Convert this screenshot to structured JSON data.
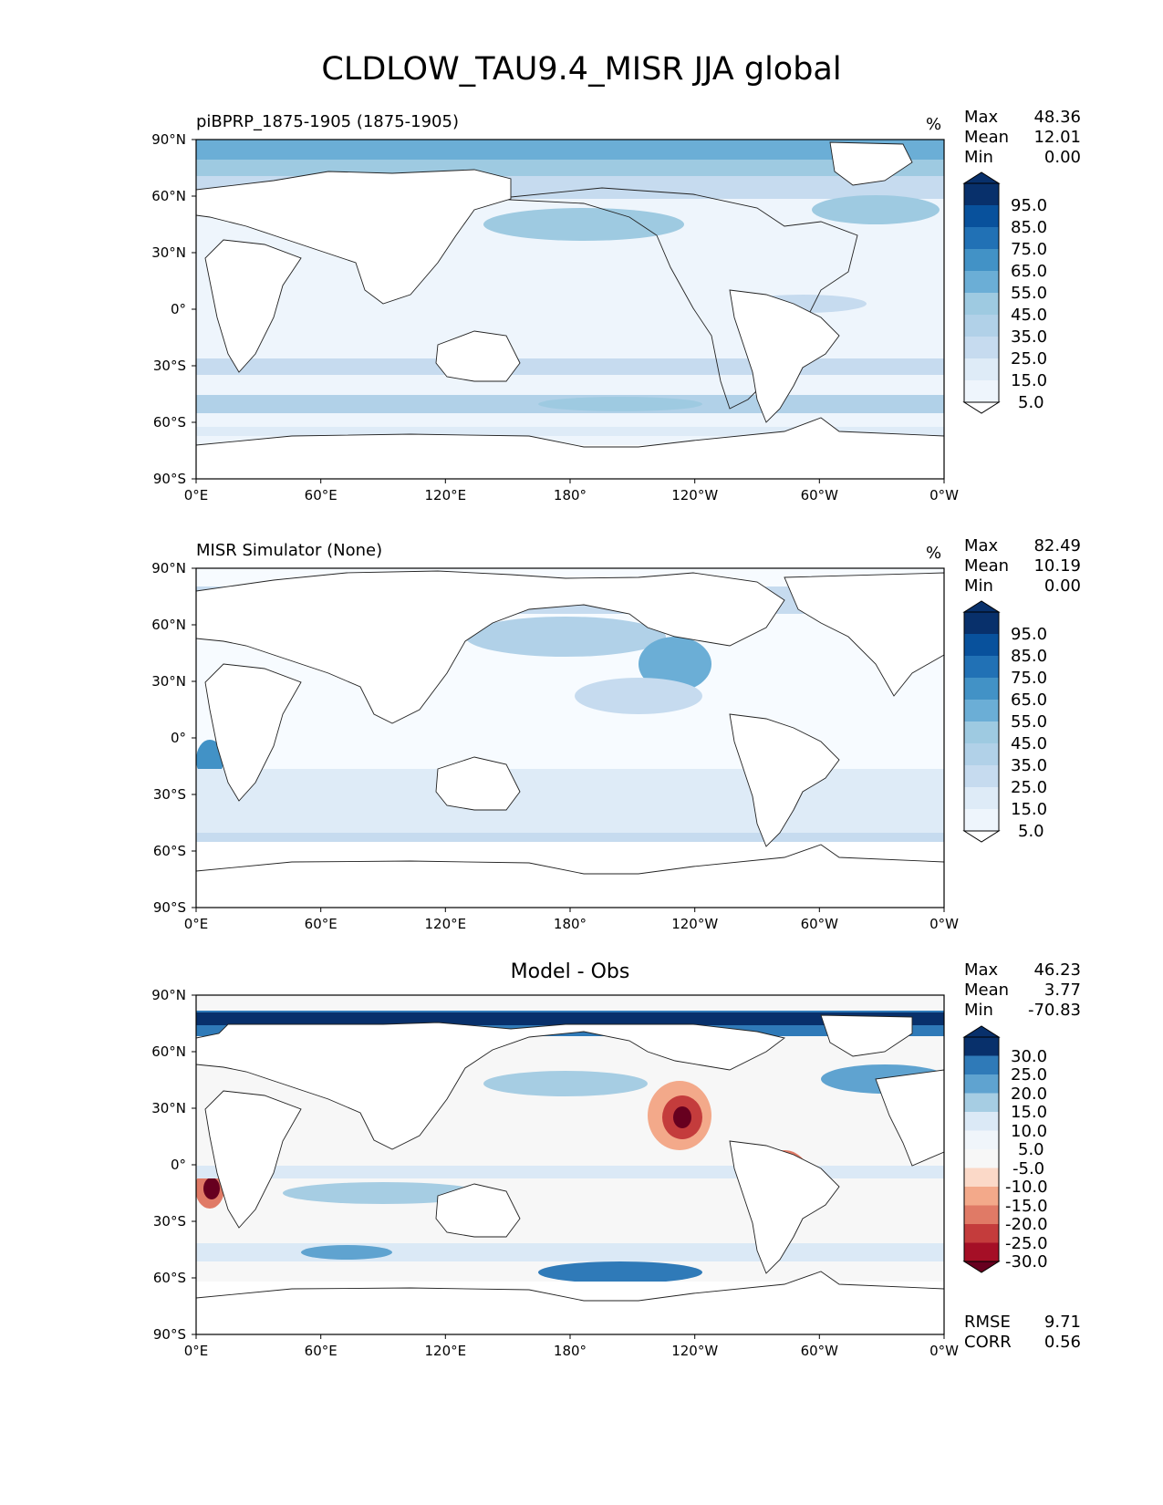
{
  "figure_title": "CLDLOW_TAU9.4_MISR JJA global",
  "colors": {
    "blues": [
      "#f7fbff",
      "#deebf7",
      "#c6dbef",
      "#b1d1e8",
      "#9ecae1",
      "#6baed6",
      "#4292c6",
      "#2c7fb8",
      "#2171b5",
      "#08519c",
      "#08306b"
    ],
    "diff": [
      "#67001f",
      "#a50f26",
      "#c43c3c",
      "#e07a66",
      "#f3a98a",
      "#fbd9c8",
      "#f7f7f7",
      "#dbe9f6",
      "#a6cde3",
      "#5fa3d0",
      "#2f7ab8",
      "#08306b"
    ],
    "coast": "#222222",
    "land": "#ffffff"
  },
  "panels": [
    {
      "id": "top",
      "title": "piBPRP_1875-1905 (1875-1905)",
      "units": "%",
      "stats": [
        {
          "label": "Max",
          "value": "48.36"
        },
        {
          "label": "Mean",
          "value": "12.01"
        },
        {
          "label": "Min",
          "value": "0.00"
        }
      ],
      "colorbar_labels": [
        "95.0",
        "85.0",
        "75.0",
        "65.0",
        "55.0",
        "45.0",
        "35.0",
        "25.0",
        "15.0",
        "5.0"
      ]
    },
    {
      "id": "middle",
      "title": "MISR Simulator (None)",
      "units": "%",
      "stats": [
        {
          "label": "Max",
          "value": "82.49"
        },
        {
          "label": "Mean",
          "value": "10.19"
        },
        {
          "label": "Min",
          "value": "0.00"
        }
      ],
      "colorbar_labels": [
        "95.0",
        "85.0",
        "75.0",
        "65.0",
        "55.0",
        "45.0",
        "35.0",
        "25.0",
        "15.0",
        "5.0"
      ]
    },
    {
      "id": "bottom",
      "title": "Model - Obs",
      "units": "",
      "stats": [
        {
          "label": "Max",
          "value": "46.23"
        },
        {
          "label": "Mean",
          "value": "3.77"
        },
        {
          "label": "Min",
          "value": "-70.83"
        }
      ],
      "colorbar_labels": [
        "30.0",
        "25.0",
        "20.0",
        "15.0",
        "10.0",
        "5.0",
        "-5.0",
        "-10.0",
        "-15.0",
        "-20.0",
        "-25.0",
        "-30.0"
      ],
      "metrics": [
        {
          "label": "RMSE",
          "value": "9.71"
        },
        {
          "label": "CORR",
          "value": "0.56"
        }
      ]
    }
  ],
  "chart_data": [
    {
      "type": "heatmap",
      "title": "piBPRP_1875-1905 (1875-1905)",
      "xlabel": "",
      "ylabel": "",
      "x_ticks": [
        "0°E",
        "60°E",
        "120°E",
        "180°",
        "120°W",
        "60°W",
        "0°W"
      ],
      "y_ticks": [
        "90°N",
        "60°N",
        "30°N",
        "0°",
        "30°S",
        "60°S",
        "90°S"
      ],
      "xlim": [
        0,
        360
      ],
      "ylim": [
        -90,
        90
      ],
      "colorbar": {
        "levels": [
          5,
          15,
          25,
          35,
          45,
          55,
          65,
          75,
          85,
          95
        ],
        "units": "%"
      },
      "stats": {
        "max": 48.36,
        "mean": 12.01,
        "min": 0.0
      }
    },
    {
      "type": "heatmap",
      "title": "MISR Simulator (None)",
      "x_ticks": [
        "0°E",
        "60°E",
        "120°E",
        "180°",
        "120°W",
        "60°W",
        "0°W"
      ],
      "y_ticks": [
        "90°N",
        "60°N",
        "30°N",
        "0°",
        "30°S",
        "60°S",
        "90°S"
      ],
      "xlim": [
        0,
        360
      ],
      "ylim": [
        -90,
        90
      ],
      "colorbar": {
        "levels": [
          5,
          15,
          25,
          35,
          45,
          55,
          65,
          75,
          85,
          95
        ],
        "units": "%"
      },
      "stats": {
        "max": 82.49,
        "mean": 10.19,
        "min": 0.0
      }
    },
    {
      "type": "heatmap",
      "title": "Model - Obs",
      "x_ticks": [
        "0°E",
        "60°E",
        "120°E",
        "180°",
        "120°W",
        "60°W",
        "0°W"
      ],
      "y_ticks": [
        "90°N",
        "60°N",
        "30°N",
        "0°",
        "30°S",
        "60°S",
        "90°S"
      ],
      "xlim": [
        0,
        360
      ],
      "ylim": [
        -90,
        90
      ],
      "colorbar": {
        "levels": [
          -30,
          -25,
          -20,
          -15,
          -10,
          -5,
          5,
          10,
          15,
          20,
          25,
          30
        ]
      },
      "stats": {
        "max": 46.23,
        "mean": 3.77,
        "min": -70.83
      },
      "rmse": 9.71,
      "corr": 0.56
    }
  ]
}
